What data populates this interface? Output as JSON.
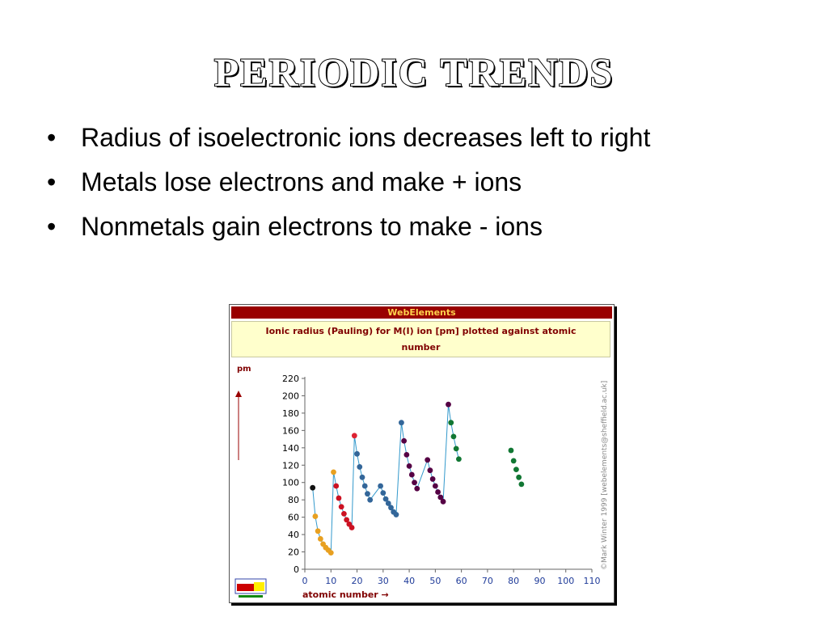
{
  "slide": {
    "title": "Periodic Trends",
    "bullets": [
      "Radius of isoelectronic ions decreases left to right",
      "Metals lose electrons and make + ions",
      "Nonmetals gain electrons to make - ions"
    ],
    "bullet_symbol": "•"
  },
  "figure": {
    "header": "WebElements",
    "caption": "Ionic radius (Pauling) for M(I) ion [pm] plotted against atomic number",
    "credit": "©Mark Winter 1999 [webelements@sheffield.ac.uk]",
    "y_unit_label": "pm",
    "x_axis_label": "atomic number →"
  },
  "chart_data": {
    "type": "scatter",
    "title": "Ionic radius (Pauling) for M(I) ion [pm] plotted against atomic number",
    "xlabel": "atomic number",
    "ylabel": "pm",
    "xlim": [
      0,
      110
    ],
    "ylim": [
      0,
      220
    ],
    "x_ticks": [
      0,
      10,
      20,
      30,
      40,
      50,
      60,
      70,
      80,
      90,
      100,
      110
    ],
    "y_ticks": [
      0,
      20,
      40,
      60,
      80,
      100,
      120,
      140,
      160,
      180,
      200,
      220
    ],
    "line_color": "#3399cc",
    "series": [
      {
        "color": "#111111",
        "x": [
          3
        ],
        "y": [
          94
        ]
      },
      {
        "color": "#e8a020",
        "x": [
          4,
          5,
          6,
          7,
          8,
          9,
          10
        ],
        "y": [
          61,
          44,
          35,
          29,
          25,
          22,
          19
        ]
      },
      {
        "color": "#e8a020",
        "x": [
          11
        ],
        "y": [
          112
        ]
      },
      {
        "color": "#cc1122",
        "x": [
          12,
          13,
          14,
          15,
          16,
          17,
          18
        ],
        "y": [
          96,
          82,
          72,
          64,
          57,
          52,
          48
        ]
      },
      {
        "color": "#dd2233",
        "x": [
          19
        ],
        "y": [
          154
        ]
      },
      {
        "color": "#336699",
        "x": [
          20,
          21,
          22,
          23,
          24,
          25
        ],
        "y": [
          133,
          118,
          106,
          96,
          87,
          80
        ]
      },
      {
        "color": "#336699",
        "x": [
          29,
          30,
          31,
          32,
          33,
          34
        ],
        "y": [
          96,
          88,
          81,
          76,
          71,
          66
        ]
      },
      {
        "color": "#336699",
        "x": [
          35
        ],
        "y": [
          63
        ]
      },
      {
        "color": "#336699",
        "x": [
          37
        ],
        "y": [
          169
        ]
      },
      {
        "color": "#550044",
        "x": [
          38,
          39,
          40,
          41,
          42,
          43
        ],
        "y": [
          148,
          132,
          119,
          109,
          100,
          93
        ]
      },
      {
        "color": "#550044",
        "x": [
          47,
          48,
          49,
          50,
          51,
          52,
          53
        ],
        "y": [
          126,
          114,
          104,
          96,
          89,
          83,
          78
        ]
      },
      {
        "color": "#550044",
        "x": [
          55
        ],
        "y": [
          190
        ]
      },
      {
        "color": "#117733",
        "x": [
          56,
          57,
          58,
          59
        ],
        "y": [
          169,
          153,
          139,
          127
        ]
      },
      {
        "color": "#117733",
        "x": [
          79,
          80,
          81,
          82,
          83
        ],
        "y": [
          137,
          125,
          115,
          106,
          98
        ]
      }
    ],
    "connected_ranges": [
      [
        3,
        59
      ]
    ],
    "grid": false,
    "legend": "none"
  }
}
